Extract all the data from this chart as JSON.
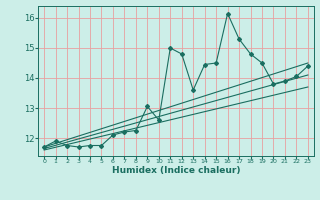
{
  "xlabel": "Humidex (Indice chaleur)",
  "bg_color": "#cceee8",
  "grid_color": "#e8a0a0",
  "line_color": "#1a6e60",
  "xlim": [
    -0.5,
    23.5
  ],
  "ylim": [
    11.4,
    16.4
  ],
  "yticks": [
    12,
    13,
    14,
    15,
    16
  ],
  "xticks": [
    0,
    1,
    2,
    3,
    4,
    5,
    6,
    7,
    8,
    9,
    10,
    11,
    12,
    13,
    14,
    15,
    16,
    17,
    18,
    19,
    20,
    21,
    22,
    23
  ],
  "main_x": [
    0,
    1,
    2,
    3,
    4,
    5,
    6,
    7,
    8,
    9,
    10,
    11,
    12,
    13,
    14,
    15,
    16,
    17,
    18,
    19,
    20,
    21,
    22,
    23
  ],
  "main_y": [
    11.7,
    11.9,
    11.75,
    11.7,
    11.75,
    11.75,
    12.1,
    12.2,
    12.25,
    13.05,
    12.6,
    15.0,
    14.8,
    13.6,
    14.45,
    14.5,
    16.15,
    15.3,
    14.8,
    14.5,
    13.8,
    13.9,
    14.05,
    14.4
  ],
  "line1_x": [
    0,
    23
  ],
  "line1_y": [
    11.7,
    14.5
  ],
  "line2_x": [
    0,
    23
  ],
  "line2_y": [
    11.6,
    13.7
  ],
  "line3_x": [
    0,
    23
  ],
  "line3_y": [
    11.65,
    14.1
  ]
}
